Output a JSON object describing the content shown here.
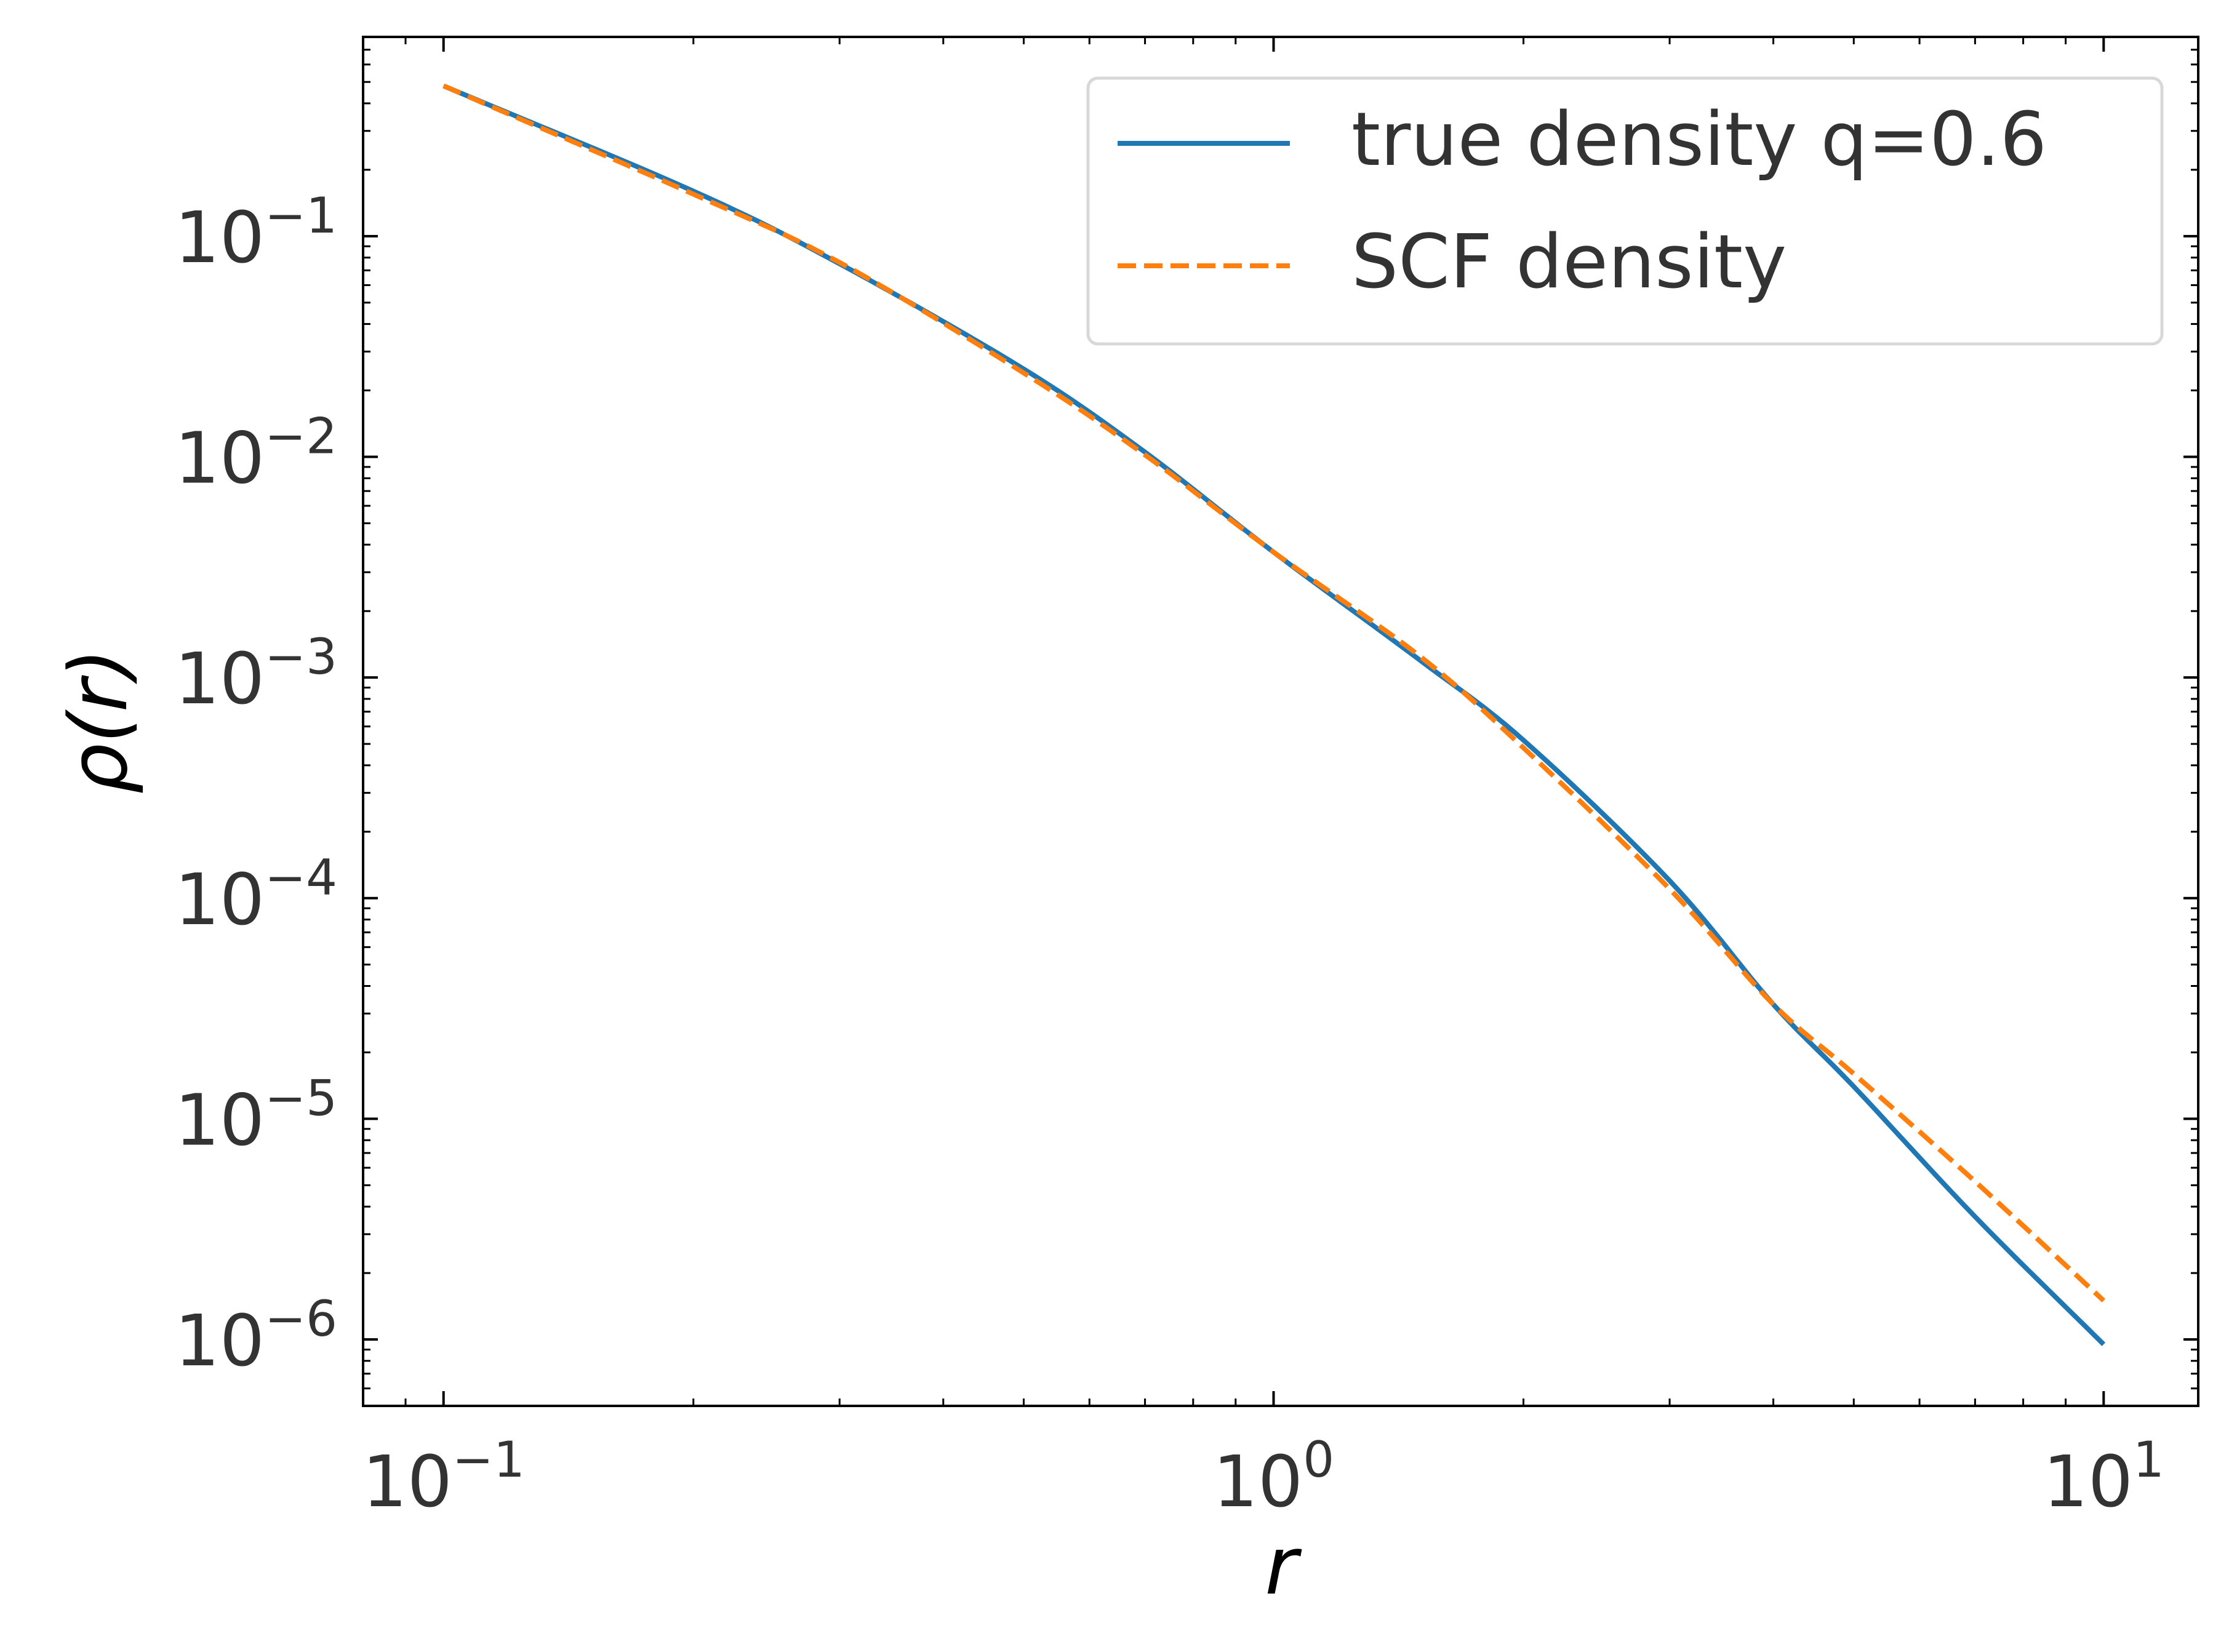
{
  "chart_data": {
    "type": "line",
    "title": "",
    "xlabel": "r",
    "ylabel": "ρ(r)",
    "xscale": "log",
    "yscale": "log",
    "xlim": [
      0.08,
      13
    ],
    "ylim": [
      5e-07,
      0.8
    ],
    "x_ticks": [
      {
        "base": "10",
        "exp": "−1"
      },
      {
        "base": "10",
        "exp": "0"
      },
      {
        "base": "10",
        "exp": "1"
      }
    ],
    "y_ticks": [
      {
        "base": "10",
        "exp": "−1"
      },
      {
        "base": "10",
        "exp": "−2"
      },
      {
        "base": "10",
        "exp": "−3"
      },
      {
        "base": "10",
        "exp": "−4"
      },
      {
        "base": "10",
        "exp": "−5"
      },
      {
        "base": "10",
        "exp": "−6"
      }
    ],
    "grid": false,
    "legend_position": "top-right",
    "series": [
      {
        "name": "true density q=0.6",
        "color": "#1f77b4",
        "style": "solid",
        "x": [
          0.1,
          0.2,
          0.3,
          0.5,
          0.7,
          1.0,
          1.5,
          2.0,
          3.0,
          4.0,
          5.0,
          7.0,
          10.0
        ],
        "y": [
          0.48,
          0.16,
          0.075,
          0.025,
          0.0105,
          0.0037,
          0.0012,
          0.00052,
          0.00012,
          3.3e-05,
          1.4e-05,
          3.6e-06,
          9.5e-07
        ]
      },
      {
        "name": "SCF density",
        "color": "#ff7f0e",
        "style": "dashed",
        "x": [
          0.1,
          0.2,
          0.3,
          0.5,
          0.7,
          1.0,
          1.5,
          2.0,
          3.0,
          4.0,
          5.0,
          7.0,
          10.0
        ],
        "y": [
          0.48,
          0.155,
          0.076,
          0.024,
          0.0102,
          0.0037,
          0.00125,
          0.00048,
          0.00011,
          3.3e-05,
          1.6e-05,
          5.2e-06,
          1.5e-06
        ]
      }
    ]
  }
}
